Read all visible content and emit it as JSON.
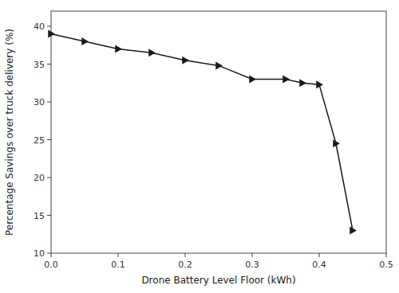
{
  "chart_data": {
    "type": "line",
    "xlabel": "Drone Battery Level Floor (kWh)",
    "ylabel": "Percentage Savings over truck delivery (%)",
    "x": [
      0.0,
      0.05,
      0.1,
      0.15,
      0.2,
      0.25,
      0.3,
      0.35,
      0.375,
      0.4,
      0.425,
      0.45
    ],
    "values": [
      39.0,
      38.0,
      37.0,
      36.5,
      35.5,
      34.8,
      33.0,
      33.0,
      32.5,
      32.3,
      24.5,
      13.0
    ],
    "xlim": [
      0.0,
      0.5
    ],
    "ylim": [
      10,
      42
    ],
    "xticks": [
      {
        "value": 0.0,
        "label": "0.0"
      },
      0.1,
      0.2,
      0.3,
      0.4,
      0.5
    ],
    "yticks": [
      10,
      15,
      20,
      25,
      30,
      35,
      40
    ],
    "color": "#1a1a1a",
    "marker": "triangle-right",
    "grid": false
  }
}
